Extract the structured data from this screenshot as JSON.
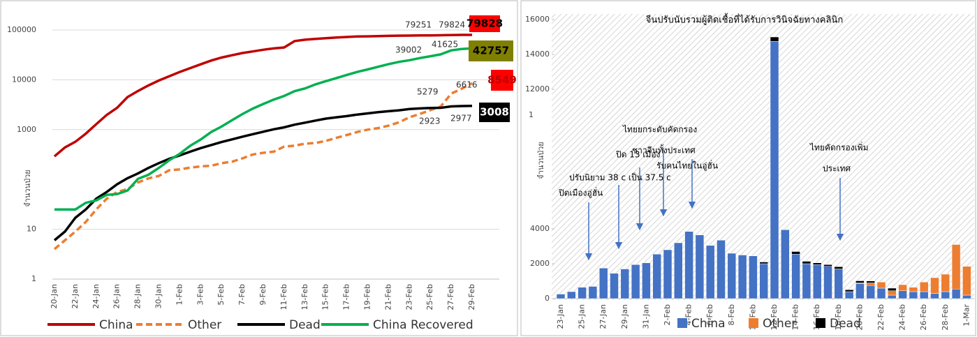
{
  "chart_data": [
    {
      "type": "line",
      "y_label": "จำนวนป่วย",
      "log_scale": true,
      "grid": true,
      "categories": [
        "20-Jan",
        null,
        "22-Jan",
        null,
        "24-Jan",
        null,
        "26-Jan",
        null,
        "28-Jan",
        null,
        "30-Jan",
        null,
        "1-Feb",
        null,
        "3-Feb",
        null,
        "5-Feb",
        null,
        "7-Feb",
        null,
        "9-Feb",
        null,
        "11-Feb",
        null,
        "13-Feb",
        null,
        "15-Feb",
        null,
        "17-Feb",
        null,
        "19-Feb",
        null,
        "21-Feb",
        null,
        "23-Feb",
        null,
        "25-Feb",
        null,
        "27-Feb",
        null,
        "29-Feb"
      ],
      "ylim": [
        1,
        100000
      ],
      "yticks": [
        1,
        10,
        1000,
        10000,
        100000
      ],
      "series": [
        {
          "name": "China",
          "color": "#c00000",
          "dashed": false,
          "values": [
            291,
            440,
            571,
            830,
            1287,
            1975,
            2744,
            4515,
            5974,
            7711,
            9692,
            11791,
            14380,
            17205,
            20438,
            24324,
            28018,
            31161,
            34546,
            37198,
            40171,
            42638,
            44653,
            59804,
            63851,
            66492,
            68500,
            70548,
            72436,
            74185,
            74576,
            75465,
            76288,
            76936,
            77150,
            77658,
            78064,
            78497,
            79251,
            79824,
            79828
          ]
        },
        {
          "name": "Other",
          "color": "#ed7d31",
          "dashed": true,
          "values": [
            4,
            6,
            9,
            14,
            25,
            41,
            56,
            64,
            87,
            105,
            118,
            153,
            159,
            173,
            183,
            188,
            212,
            227,
            265,
            317,
            343,
            361,
            457,
            476,
            523,
            538,
            595,
            685,
            780,
            896,
            999,
            1073,
            1200,
            1402,
            1769,
            2069,
            2459,
            2918,
            5279,
            6616,
            8549
          ]
        },
        {
          "name": "Dead",
          "color": "#000000",
          "dashed": false,
          "values": [
            6,
            9,
            17,
            25,
            41,
            56,
            80,
            106,
            132,
            170,
            213,
            259,
            304,
            361,
            425,
            490,
            563,
            636,
            722,
            811,
            908,
            1016,
            1113,
            1259,
            1380,
            1523,
            1665,
            1770,
            1868,
            2004,
            2118,
            2236,
            2345,
            2442,
            2592,
            2663,
            2715,
            2744,
            2923,
            2977,
            3008
          ]
        },
        {
          "name": "China Recovered",
          "color": "#00b050",
          "dashed": false,
          "values": [
            25,
            25,
            25,
            34,
            38,
            49,
            51,
            60,
            103,
            124,
            171,
            243,
            328,
            475,
            632,
            892,
            1152,
            1540,
            2050,
            2649,
            3281,
            3996,
            4740,
            5911,
            6723,
            8096,
            9419,
            10844,
            12552,
            14376,
            16155,
            18264,
            20659,
            22888,
            24734,
            27323,
            29745,
            32495,
            39002,
            41625,
            42757
          ]
        }
      ]
    },
    {
      "type": "stacked_bar",
      "title": "จีนปรับนับรวมผู้ติดเชื้อที่ได้รับการวินิจฉัยทางคลินิก",
      "y_label": "จำนวนป่วย",
      "categories": [
        "23-Jan",
        null,
        "25-Jan",
        null,
        "27-Jan",
        null,
        "29-Jan",
        null,
        "31-Jan",
        null,
        "2-Feb",
        null,
        "4-Feb",
        null,
        "6-Feb",
        null,
        "8-Feb",
        null,
        "10-Feb",
        null,
        "12-Feb",
        null,
        "14-Feb",
        null,
        "16-Feb",
        null,
        "18-Feb",
        null,
        "20-Feb",
        null,
        "22-Feb",
        null,
        "24-Feb",
        null,
        "26-Feb",
        null,
        "28-Feb",
        null,
        "1-Mar"
      ],
      "ylim": [
        0,
        16000
      ],
      "yticks": [
        0,
        2000,
        4000,
        12000,
        14000,
        16000
      ],
      "y_stray_label": "1",
      "series": [
        {
          "name": "China",
          "color": "#4472c4",
          "values": [
            260,
            400,
            650,
            700,
            1750,
            1450,
            1700,
            1950,
            2050,
            2550,
            2800,
            3200,
            3850,
            3650,
            3050,
            3350,
            2600,
            2500,
            2450,
            2000,
            14750,
            3950,
            2550,
            2000,
            1950,
            1850,
            1700,
            400,
            850,
            750,
            600,
            200,
            450,
            400,
            400,
            300,
            400,
            550,
            200
          ]
        },
        {
          "name": "Other",
          "color": "#ed7d31",
          "values": [
            0,
            0,
            0,
            0,
            0,
            0,
            0,
            0,
            0,
            0,
            0,
            0,
            0,
            0,
            0,
            0,
            0,
            0,
            0,
            0,
            0,
            0,
            0,
            0,
            0,
            0,
            0,
            0,
            50,
            150,
            350,
            250,
            350,
            250,
            550,
            900,
            1000,
            2550,
            1650
          ]
        },
        {
          "name": "Dead",
          "color": "#000000",
          "values": [
            0,
            0,
            0,
            0,
            0,
            0,
            0,
            0,
            0,
            0,
            0,
            0,
            0,
            0,
            0,
            0,
            0,
            0,
            0,
            100,
            250,
            0,
            150,
            140,
            100,
            100,
            130,
            110,
            120,
            110,
            0,
            150,
            0,
            0,
            0,
            0,
            0,
            0,
            0
          ]
        }
      ],
      "annotations": [
        "ปรับนิยาม 38 c เป็น 37.5 c",
        "ปิดเมืองอู่ฮั่น",
        "ปิด 13 เมือง",
        "ไทยยกระดับคัดกรอง",
        "ชาวจีนทั้งประเทศ",
        "รับคนไทยในอู่ฮั่น",
        "ไทยคัดกรองเพิ่ม",
        "ประเทศ"
      ]
    }
  ]
}
